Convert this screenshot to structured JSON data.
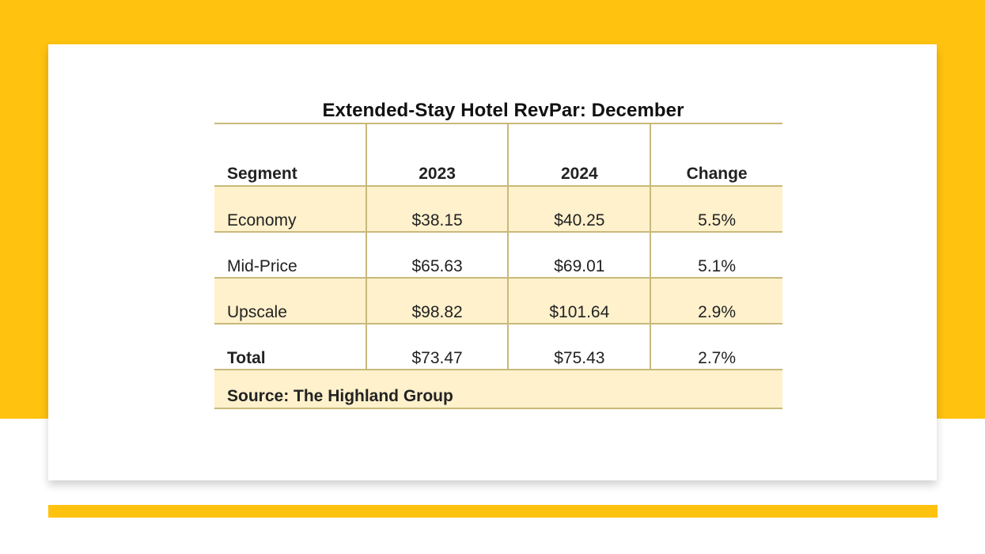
{
  "table": {
    "title": "Extended-Stay Hotel RevPar: December",
    "headers": [
      "Segment",
      "2023",
      "2024",
      "Change"
    ],
    "rows": [
      {
        "segment": "Economy",
        "y2023": "$38.15",
        "y2024": "$40.25",
        "change": "5.5%"
      },
      {
        "segment": "Mid-Price",
        "y2023": "$65.63",
        "y2024": "$69.01",
        "change": "5.1%"
      },
      {
        "segment": "Upscale",
        "y2023": "$98.82",
        "y2024": "$101.64",
        "change": "2.9%"
      },
      {
        "segment": "Total",
        "y2023": "$73.47",
        "y2024": "$75.43",
        "change": "2.7%"
      }
    ],
    "source": "Source: The Highland Group"
  },
  "colors": {
    "accent_yellow": "#FFC20E",
    "row_shade": "#FFF1CC",
    "rule": "#c9b97a"
  }
}
